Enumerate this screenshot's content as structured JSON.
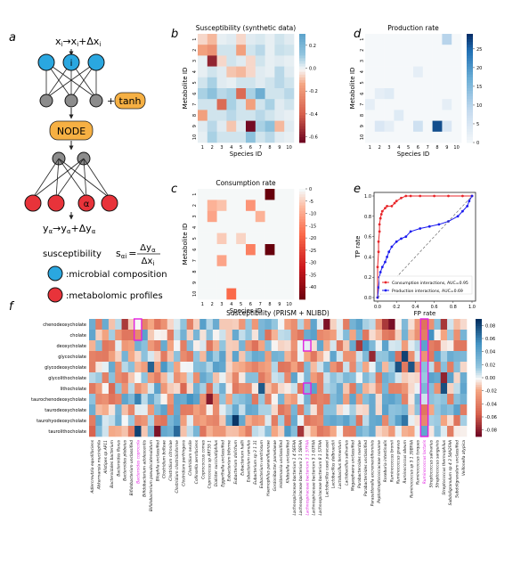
{
  "panel_letters": {
    "a": "a",
    "b": "b",
    "c": "c",
    "d": "d",
    "e": "e",
    "f": "f"
  },
  "schematic": {
    "top_eq_x": "x",
    "top_eq_i": "i",
    "top_eq_rest": "→x",
    "top_eq_rest_i": "i",
    "top_eq_delta": "+Δx",
    "top_eq_delta_i": "i",
    "node_i": "i",
    "node_alpha": "α",
    "tanh_label": "tanh",
    "plus": "+",
    "node_label": "NODE",
    "bottom_eq_y": "y",
    "bottom_eq_alpha": "α",
    "bottom_eq_rest": "→y",
    "bottom_eq_rest_alpha": "α",
    "bottom_eq_delta": "+Δy",
    "bottom_eq_delta_alpha": "α",
    "suscept_label": "susceptibility",
    "suscept_s": "s",
    "suscept_sub": "αi",
    "suscept_eq": "=",
    "suscept_num": "Δy",
    "suscept_num_sub": "α",
    "suscept_den": "Δx",
    "suscept_den_sub": "i",
    "legend_blue": ":microbial composition",
    "legend_red": ":metabolomic profiles",
    "colors": {
      "blue": "#2aa7e0",
      "red": "#e8333a",
      "gray": "#8c8c8c",
      "orange": "#f6b043"
    }
  },
  "chart_data": [
    {
      "panel": "b",
      "type": "heatmap",
      "title": "Susceptibility (synthetic data)",
      "xlabel": "Species ID",
      "ylabel": "Metabolite ID",
      "x_ticks": [
        "1",
        "2",
        "3",
        "4",
        "5",
        "6",
        "7",
        "8",
        "9",
        "10"
      ],
      "y_ticks": [
        "1",
        "2",
        "3",
        "4",
        "5",
        "6",
        "7",
        "8",
        "9",
        "10"
      ],
      "colorbar_ticks": [
        "0.2",
        "0.0",
        "-0.2",
        "-0.4",
        "-0.6"
      ],
      "colorbar_range": [
        -0.65,
        0.3
      ],
      "colormap": "RdBu",
      "values": [
        [
          -0.05,
          -0.1,
          0.02,
          0.03,
          -0.05,
          0.03,
          0.04,
          0.02,
          0.05,
          0.03
        ],
        [
          -0.15,
          -0.2,
          0.05,
          0.05,
          -0.15,
          0.05,
          0.08,
          0.02,
          0.06,
          0.05
        ],
        [
          0.02,
          -0.55,
          -0.05,
          0.05,
          0.03,
          -0.05,
          0.05,
          0.02,
          0.03,
          0.02
        ],
        [
          0.02,
          0.05,
          0.03,
          -0.08,
          -0.1,
          -0.05,
          0.03,
          0.02,
          0.08,
          0.03
        ],
        [
          0.05,
          0.1,
          0.03,
          0.02,
          0.05,
          0.05,
          0.03,
          0.05,
          0.08,
          0.05
        ],
        [
          0.1,
          0.15,
          0.08,
          0.1,
          -0.35,
          0.1,
          0.25,
          0.05,
          0.05,
          0.08
        ],
        [
          0.05,
          0.05,
          -0.35,
          0.1,
          0.05,
          -0.15,
          0.05,
          0.1,
          0.03,
          0.05
        ],
        [
          -0.15,
          0.05,
          0.05,
          0.08,
          0.05,
          0.05,
          0.08,
          0.05,
          0.03,
          0.02
        ],
        [
          0.03,
          0.08,
          0.03,
          -0.08,
          0.03,
          -0.62,
          0.1,
          0.15,
          -0.1,
          0.03
        ],
        [
          0.02,
          0.1,
          0.05,
          0.05,
          0.05,
          0.15,
          0.05,
          0.08,
          0.03,
          0.02
        ]
      ]
    },
    {
      "panel": "c",
      "type": "heatmap",
      "title": "Consumption rate",
      "xlabel": "Species ID",
      "ylabel": "Metabolite ID",
      "x_ticks": [
        "1",
        "2",
        "3",
        "4",
        "5",
        "6",
        "7",
        "8",
        "9",
        "10"
      ],
      "y_ticks": [
        "1",
        "2",
        "3",
        "4",
        "5",
        "6",
        "7",
        "8",
        "9",
        "10"
      ],
      "colorbar_ticks": [
        "0",
        "-5",
        "-10",
        "-15",
        "-20",
        "-25",
        "-30",
        "-35",
        "-40"
      ],
      "colorbar_range": [
        -45,
        0
      ],
      "colormap": "Reds_r",
      "values": [
        [
          0,
          0,
          0,
          0,
          0,
          0,
          0,
          -45,
          0,
          0
        ],
        [
          0,
          -8,
          -6,
          0,
          0,
          -12,
          0,
          0,
          0,
          0
        ],
        [
          0,
          -10,
          0,
          0,
          0,
          0,
          -8,
          0,
          0,
          0
        ],
        [
          0,
          0,
          0,
          0,
          0,
          0,
          0,
          0,
          0,
          0
        ],
        [
          0,
          0,
          -5,
          0,
          -4,
          0,
          0,
          0,
          0,
          0
        ],
        [
          0,
          0,
          0,
          0,
          0,
          -15,
          0,
          -45,
          0,
          0
        ],
        [
          0,
          0,
          -10,
          0,
          0,
          0,
          0,
          0,
          0,
          0
        ],
        [
          0,
          0,
          0,
          0,
          0,
          0,
          0,
          0,
          0,
          0
        ],
        [
          0,
          0,
          0,
          0,
          0,
          0,
          0,
          0,
          0,
          0
        ],
        [
          0,
          0,
          0,
          -18,
          0,
          0,
          0,
          0,
          0,
          0
        ]
      ]
    },
    {
      "panel": "d",
      "type": "heatmap",
      "title": "Production rate",
      "xlabel": "Species ID",
      "ylabel": "Metabolite ID",
      "x_ticks": [
        "1",
        "2",
        "3",
        "4",
        "5",
        "6",
        "7",
        "8",
        "9",
        "10"
      ],
      "y_ticks": [
        "1",
        "2",
        "3",
        "4",
        "5",
        "6",
        "7",
        "8",
        "9",
        "10"
      ],
      "colorbar_ticks": [
        "25",
        "20",
        "15",
        "10",
        "5",
        "0"
      ],
      "colorbar_range": [
        0,
        29
      ],
      "colormap": "Blues",
      "values": [
        [
          0,
          0,
          0,
          0,
          0,
          0,
          0,
          0,
          10,
          0
        ],
        [
          0,
          0,
          0,
          0,
          0,
          0,
          0,
          0,
          0,
          0
        ],
        [
          0,
          0,
          0,
          0,
          0,
          0,
          0,
          0,
          0,
          0
        ],
        [
          0,
          0,
          0,
          0,
          0,
          3,
          0,
          0,
          0,
          0
        ],
        [
          0,
          0,
          0,
          0,
          0,
          0,
          0,
          0,
          0,
          0
        ],
        [
          0,
          3,
          4,
          0,
          0,
          0,
          0,
          0,
          0,
          0
        ],
        [
          3,
          0,
          0,
          0,
          0,
          0,
          0,
          0,
          3,
          0
        ],
        [
          0,
          0,
          0,
          4,
          0,
          0,
          0,
          0,
          0,
          0
        ],
        [
          0,
          5,
          3,
          0,
          0,
          7,
          0,
          27,
          5,
          0
        ],
        [
          0,
          0,
          0,
          0,
          0,
          0,
          0,
          0,
          0,
          0
        ]
      ]
    },
    {
      "panel": "e",
      "type": "line",
      "xlabel": "FP rate",
      "ylabel": "TP rate",
      "xlim": [
        0,
        1
      ],
      "ylim": [
        0,
        1
      ],
      "x_ticks": [
        "0.0",
        "0.2",
        "0.4",
        "0.6",
        "0.8",
        "1.0"
      ],
      "y_ticks": [
        "0.0",
        "0.2",
        "0.4",
        "0.6",
        "0.8",
        "1.0"
      ],
      "legend_position": "bottom-right",
      "series": [
        {
          "name": "Consumption interactions, AUC=0.95",
          "color": "#e8262a",
          "x": [
            0,
            0,
            0.01,
            0.01,
            0.02,
            0.02,
            0.03,
            0.04,
            0.05,
            0.08,
            0.1,
            0.15,
            0.18,
            0.2,
            0.25,
            0.3,
            0.35,
            0.45,
            0.6,
            0.75,
            0.9,
            1.0
          ],
          "y": [
            0,
            0.3,
            0.45,
            0.55,
            0.65,
            0.72,
            0.78,
            0.82,
            0.85,
            0.88,
            0.9,
            0.9,
            0.93,
            0.95,
            0.98,
            1.0,
            1.0,
            1.0,
            1.0,
            1.0,
            1.0,
            1.0
          ]
        },
        {
          "name": "Production interactions, AUC=0.69",
          "color": "#1a1aef",
          "x": [
            0,
            0.01,
            0.02,
            0.03,
            0.05,
            0.08,
            0.1,
            0.12,
            0.15,
            0.2,
            0.25,
            0.3,
            0.35,
            0.45,
            0.55,
            0.65,
            0.75,
            0.85,
            0.9,
            0.95,
            0.97,
            1.0
          ],
          "y": [
            0,
            0.1,
            0.2,
            0.25,
            0.3,
            0.35,
            0.4,
            0.45,
            0.5,
            0.55,
            0.58,
            0.6,
            0.65,
            0.68,
            0.7,
            0.72,
            0.75,
            0.8,
            0.85,
            0.9,
            0.95,
            1.0
          ]
        },
        {
          "name": "",
          "color": "#555555",
          "style": "dashed",
          "x": [
            0,
            1
          ],
          "y": [
            0,
            1
          ]
        }
      ]
    },
    {
      "panel": "f",
      "type": "heatmap",
      "title": "Susceptibility (PRISM + NLIBD)",
      "colormap": "RdBu",
      "colorbar_ticks": [
        "0.08",
        "0.06",
        "0.04",
        "0.02",
        "0.00",
        "-0.02",
        "-0.04",
        "-0.06",
        "-0.08"
      ],
      "colorbar_range": [
        -0.09,
        0.09
      ],
      "rows": [
        "chenodeoxycholate",
        "cholate",
        "deoxycholate",
        "glycocholate",
        "glycodeoxycholate",
        "glycolithocholate",
        "lithocholate",
        "taurochenodeoxycholate",
        "taurodeoxycholate",
        "taurohyodeoxycholate",
        "taurolithocholate"
      ],
      "columns": [
        "Adlercreutzia equolifaciens",
        "Akkermansia muciniphila",
        "Alistipes sp AP11",
        "Bacteroidales bacterium",
        "Bacteroides fluxus",
        "Bacteroides plebeius",
        "Bifidobacterium unclassified",
        "Bacteroides coprocola",
        "Bifidobacterium adolescentis",
        "Bifidobacterium pseudocatenulatum",
        "Bilophila unclassified",
        "Clostridium bolteae",
        "Clostridium citroniae",
        "Clostridium clostridioforme",
        "Clostridium perfringens",
        "Clostridium nexile",
        "Collinsella aerofaciens",
        "Coprococcus comes",
        "Coprococcus sp ART55 1",
        "Dialister succinatiphilus",
        "Eggerthella unclassified",
        "Eubacterium biforme",
        "Eubacterium dolichum",
        "Eubacterium hallii",
        "Eubacterium ramulus",
        "Eubacterium sp 3 1 31",
        "Eubacterium ventriosum",
        "Haemophilus parainfluenzae",
        "Gordonibacter pamelaeae",
        "Holdemania unclassified",
        "Klebsiella unclassified",
        "Lachnospiraceae bacterium 1 4 56FAA",
        "Lachnospiraceae bacterium 2 1 58FAA",
        "Lachnospiraceae bacterium 3 1 57FAA",
        "Lachnospiraceae bacterium 5 1 63FAA",
        "Lachnospiraceae bacterium 8 1 57FAA",
        "Lactobacillus casei paracasei",
        "Lactobacillus delbrueckii",
        "Lactobacillus fermentum",
        "Lactobacillus salivarius",
        "Megasphaera unclassified",
        "Parabacteroides merdae",
        "Parabacteroides unclassified",
        "Parasutterella excrementihominis",
        "Peptostreptococcaceae noname",
        "Roseburia intestinalis",
        "Ruminococcus bromii",
        "Ruminococcus gnavus",
        "Ruminococcus obeum",
        "Ruminococcus sp 5 1 39BFAA",
        "Ruminococcus torques",
        "Ruminococcus lactaris",
        "Streptococcus salivarius",
        "Streptococcus sanguinis",
        "Streptococcus thermophilus",
        "Subdoligranulum sp 4 3 54A2FAA",
        "Subdoligranulum unclassified",
        "Veillonella atypica"
      ],
      "highlighted_columns": [
        "Bacteroides coprocola",
        "Lachnospiraceae bacterium 3 1 57FAA",
        "Ruminococcus lactaris"
      ],
      "highlight_color": "#e020e0"
    }
  ]
}
